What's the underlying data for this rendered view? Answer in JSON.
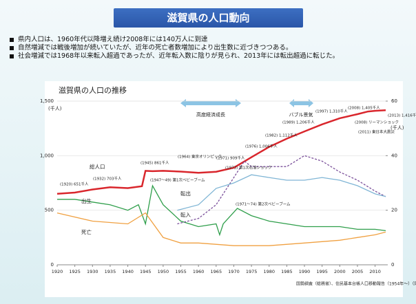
{
  "slide": {
    "title": "滋賀県の人口動向",
    "bullets": [
      "県内人口は、1960年代以降増え続け2008年には140万人に到達",
      "自然増減では戦後増加が続いていたが、近年の死亡者数増加により出生数に近づきつつある。",
      "社会増減では1968年以来転入超過であったが、近年転入数に陰りが見られ、2013年には転出超過に転じた。"
    ]
  },
  "chart_data": {
    "type": "line",
    "title": "滋賀県の人口の推移",
    "ylabel": "(千人)",
    "y2label": "(千人)",
    "xlim": [
      1920,
      2013
    ],
    "xticks": [
      1920,
      1925,
      1930,
      1935,
      1940,
      1945,
      1950,
      1955,
      1960,
      1965,
      1970,
      1975,
      1980,
      1985,
      1990,
      1995,
      2000,
      2005,
      2010
    ],
    "ylim": [
      0,
      1500
    ],
    "yticks": [
      0,
      500,
      {
        "value": 1000,
        "label": "1,000"
      },
      {
        "value": 1500,
        "label": "1,500"
      }
    ],
    "y2lim": [
      0,
      60
    ],
    "y2ticks": [
      0,
      20,
      40,
      60
    ],
    "grid": true,
    "series": [
      {
        "name": "総人口",
        "color": "#d9262c",
        "x": [
          1920,
          1925,
          1930,
          1935,
          1940,
          1944,
          1945,
          1947,
          1950,
          1955,
          1960,
          1965,
          1970,
          1975,
          1980,
          1985,
          1990,
          1995,
          2000,
          2005,
          2008,
          2010,
          2013
        ],
        "values": [
          651,
          662,
          690,
          711,
          703,
          720,
          861,
          858,
          861,
          854,
          843,
          853,
          890,
          986,
          1080,
          1156,
          1222,
          1287,
          1343,
          1380,
          1405,
          1411,
          1416
        ]
      },
      {
        "name": "出生",
        "color": "#2e9e4a",
        "axis": "y2",
        "x": [
          1920,
          1925,
          1930,
          1935,
          1940,
          1943,
          1945,
          1947,
          1950,
          1955,
          1960,
          1965,
          1966,
          1967,
          1971,
          1975,
          1980,
          1985,
          1990,
          1995,
          2000,
          2005,
          2010,
          2013
        ],
        "values": [
          24,
          24,
          23,
          22,
          20,
          22,
          15,
          29,
          22,
          16,
          14,
          15,
          11,
          15,
          20.7,
          18,
          16,
          15,
          14,
          14,
          14,
          13,
          13,
          12.5
        ]
      },
      {
        "name": "死亡",
        "color": "#f0a040",
        "axis": "y2",
        "x": [
          1920,
          1930,
          1940,
          1945,
          1950,
          1955,
          1960,
          1970,
          1980,
          1990,
          2000,
          2005,
          2010,
          2013
        ],
        "values": [
          19,
          16,
          15,
          19,
          10,
          8,
          8,
          7,
          7,
          8,
          9,
          10,
          11,
          12
        ]
      },
      {
        "name": "転入",
        "color": "#7a4f9a",
        "axis": "y2",
        "x": [
          1954,
          1960,
          1965,
          1970,
          1973,
          1975,
          1980,
          1985,
          1990,
          1995,
          2000,
          2005,
          2010,
          2013
        ],
        "values": [
          15,
          17,
          22,
          32,
          38,
          36,
          36,
          36,
          40,
          38,
          34,
          31,
          27,
          25
        ]
      },
      {
        "name": "転出",
        "color": "#7fb5d5",
        "axis": "y2",
        "x": [
          1954,
          1960,
          1965,
          1970,
          1975,
          1980,
          1985,
          1990,
          1995,
          2000,
          2005,
          2010,
          2013
        ],
        "values": [
          20,
          22,
          28,
          30,
          33,
          32,
          31,
          31,
          32,
          31,
          29,
          26,
          25
        ]
      }
    ],
    "annotations": [
      "(1920) 651千人",
      "(1932) 703千人",
      "(1945) 861千人",
      "(1971) 909千人",
      "(1976) 1,006千人",
      "(1982) 1,112千人",
      "(1989) 1,206千人",
      "(1997) 1,310千人",
      "(2008) 1,405千人",
      "(2013) 1,416千人",
      "(1947～49) 第1次ベビーブーム",
      "(1971～74) 第2次ベビーブーム",
      "(1964) 東京オリンピック",
      "(1973) 第1次石油ショック",
      "(2008) リーマンショック",
      "(2011) 東日本大震災"
    ],
    "periods": [
      "高度経済成長",
      "バブル景気"
    ],
    "source": "国勢調査（総務省）、住民基本台帳人口移動報告（1954年～）（同）、人口動態統計（厚生労働省）"
  }
}
